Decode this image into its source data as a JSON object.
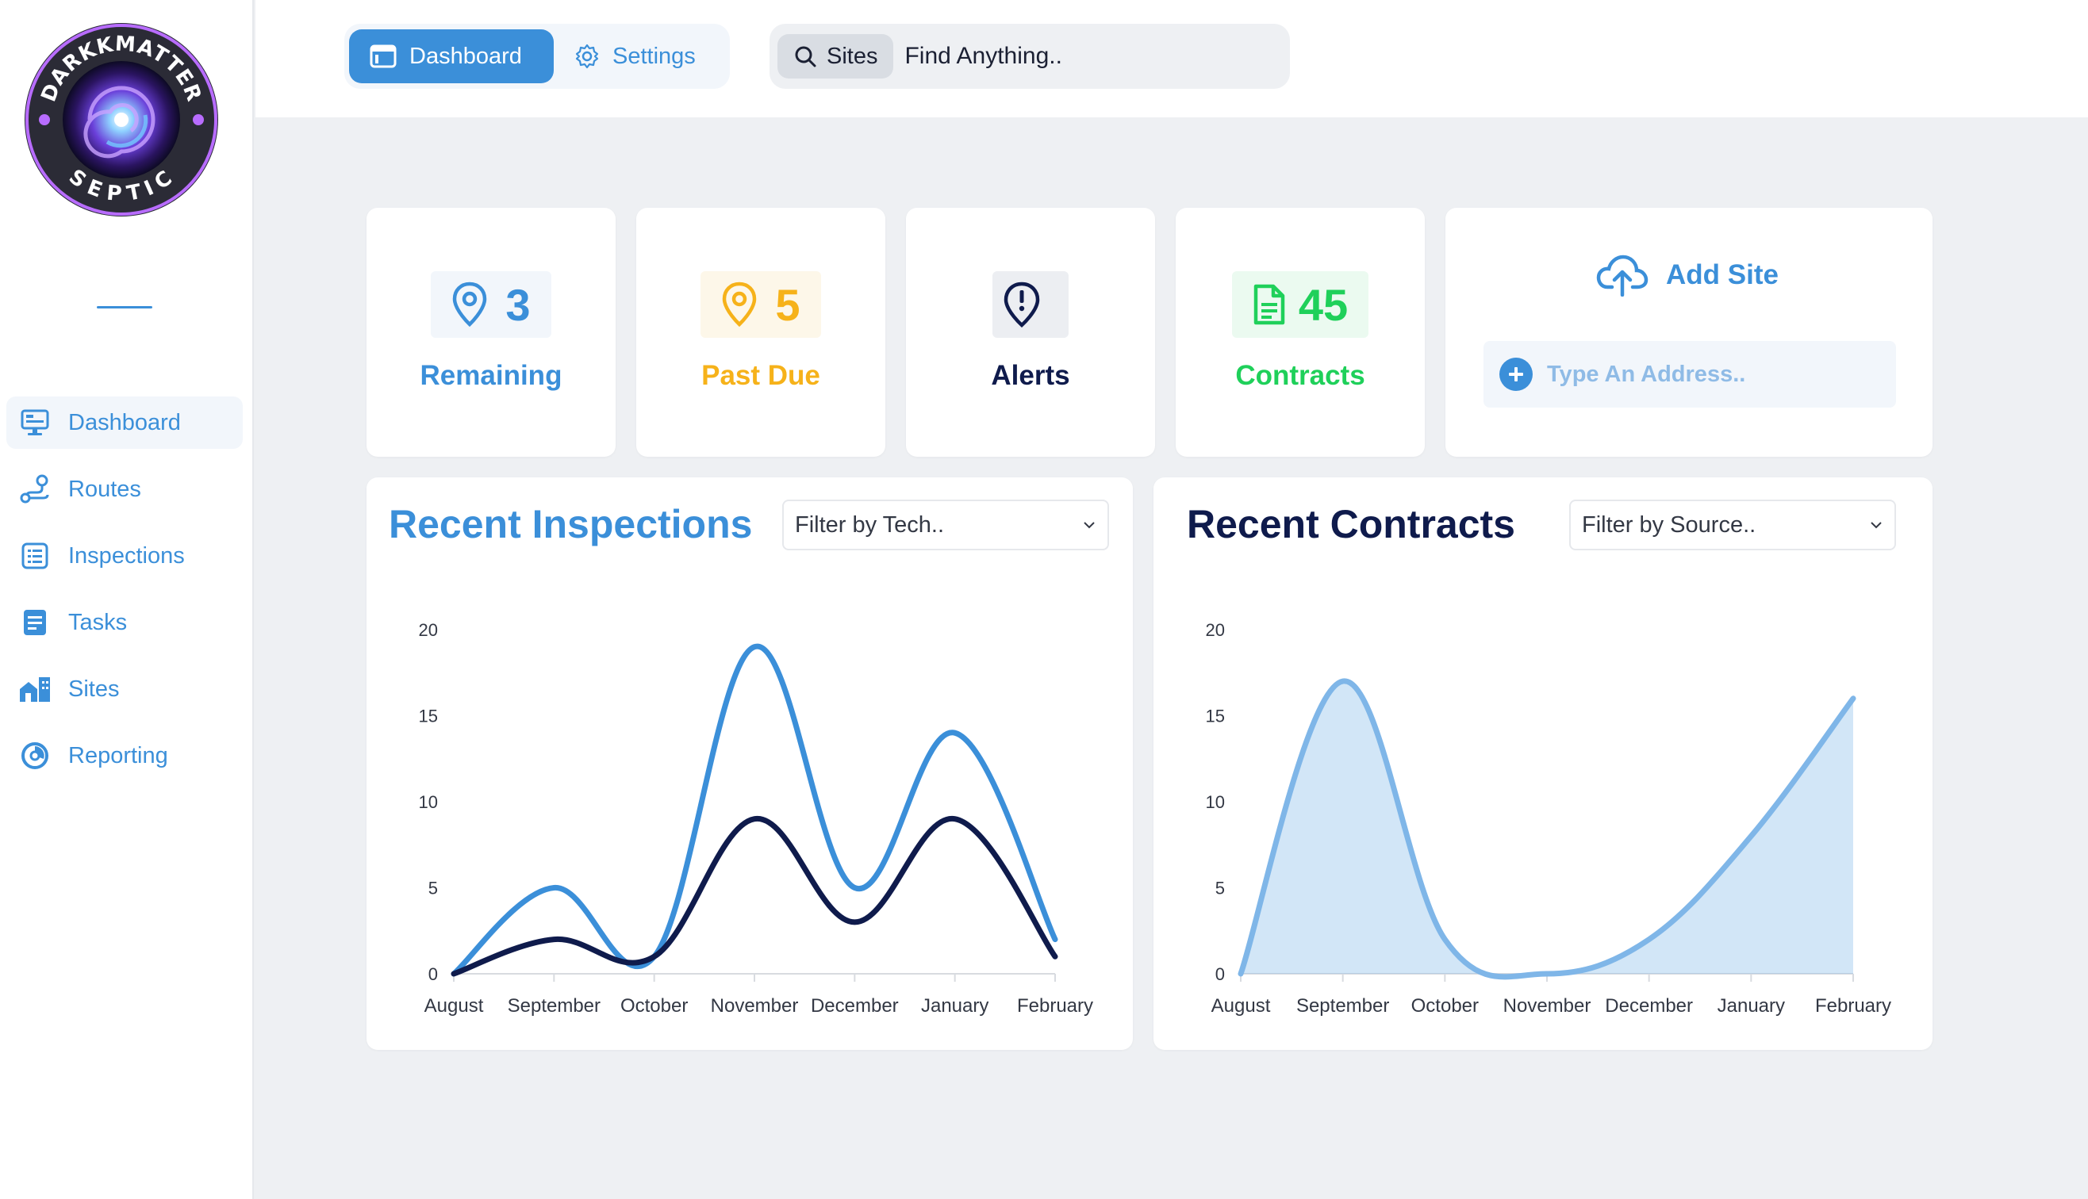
{
  "brand": {
    "logo_top": "DARKKMATTER",
    "logo_bottom": "SEPTIC"
  },
  "sidebar": {
    "items": [
      {
        "label": "Dashboard",
        "icon": "monitor-icon",
        "active": true
      },
      {
        "label": "Routes",
        "icon": "route-icon",
        "active": false
      },
      {
        "label": "Inspections",
        "icon": "list-icon",
        "active": false
      },
      {
        "label": "Tasks",
        "icon": "task-icon",
        "active": false
      },
      {
        "label": "Sites",
        "icon": "buildings-icon",
        "active": false
      },
      {
        "label": "Reporting",
        "icon": "reporting-icon",
        "active": false
      }
    ]
  },
  "header": {
    "tabs": [
      {
        "label": "Dashboard",
        "icon": "browser-icon",
        "active": true
      },
      {
        "label": "Settings",
        "icon": "gear-icon",
        "active": false
      }
    ],
    "search": {
      "scope": "Sites",
      "placeholder": "Find Anything.."
    }
  },
  "stats": [
    {
      "value": "3",
      "label": "Remaining",
      "icon": "map-pin-icon",
      "color": "#3b8fd9",
      "bg": "#f2f6fb"
    },
    {
      "value": "5",
      "label": "Past Due",
      "icon": "map-pin-icon",
      "color": "#f6b21a",
      "bg": "#fdf7e9"
    },
    {
      "value": "",
      "label": "Alerts",
      "icon": "alert-pin-icon",
      "color": "#0f1b4c",
      "bg": "#eceef2"
    },
    {
      "value": "45",
      "label": "Contracts",
      "icon": "document-icon",
      "color": "#1fd05a",
      "bg": "#ebfaf0"
    }
  ],
  "add_site": {
    "label": "Add Site",
    "placeholder": "Type An Address.."
  },
  "charts_meta": [
    {
      "title": "Recent Inspections",
      "title_color": "#3b8fd9",
      "filter": "Filter by Tech.."
    },
    {
      "title": "Recent Contracts",
      "title_color": "#0f1b4c",
      "filter": "Filter by Source.."
    }
  ],
  "chart_data": [
    {
      "type": "line",
      "title": "Recent Inspections",
      "categories": [
        "August",
        "September",
        "October",
        "November",
        "December",
        "January",
        "February"
      ],
      "ylim": [
        0,
        20
      ],
      "yticks": [
        0,
        5,
        10,
        15,
        20
      ],
      "grid": false,
      "series": [
        {
          "values": [
            0,
            5,
            1,
            19,
            5,
            14,
            2
          ],
          "color": "#3b8fd9"
        },
        {
          "values": [
            0,
            2,
            1,
            9,
            3,
            9,
            1
          ],
          "color": "#0f1b4c"
        }
      ]
    },
    {
      "type": "area",
      "title": "Recent Contracts",
      "categories": [
        "August",
        "September",
        "October",
        "November",
        "December",
        "January",
        "February"
      ],
      "ylim": [
        0,
        20
      ],
      "yticks": [
        0,
        5,
        10,
        15,
        20
      ],
      "grid": false,
      "series": [
        {
          "values": [
            0,
            17,
            2,
            0,
            2,
            8,
            16
          ],
          "color": "#7fb6e8"
        }
      ]
    }
  ]
}
